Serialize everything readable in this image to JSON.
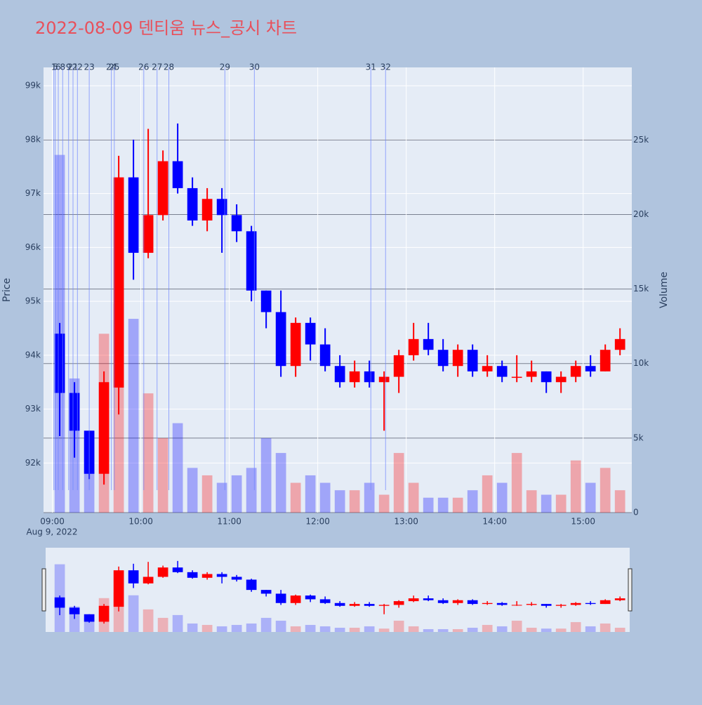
{
  "chart_data": {
    "type": "candlestick",
    "title": "2022-08-09 덴티움 뉴스_공시 차트",
    "y_label": "Price",
    "y2_label": "Volume",
    "x_date_label": "Aug 9, 2022",
    "up_color": "#ff0000",
    "down_color": "#0000ff",
    "grid": true,
    "x": [
      "09:00",
      "09:10",
      "09:20",
      "09:30",
      "09:40",
      "09:50",
      "10:00",
      "10:10",
      "10:20",
      "10:30",
      "10:40",
      "10:50",
      "11:00",
      "11:10",
      "11:20",
      "11:30",
      "11:40",
      "11:50",
      "12:00",
      "12:10",
      "12:20",
      "12:30",
      "12:40",
      "12:50",
      "13:00",
      "13:10",
      "13:20",
      "13:30",
      "13:40",
      "13:50",
      "14:00",
      "14:10",
      "14:20",
      "14:30",
      "14:40",
      "14:50",
      "15:00",
      "15:10",
      "15:20"
    ],
    "open": [
      94400,
      93300,
      92600,
      91800,
      93400,
      97300,
      95900,
      96600,
      97600,
      97100,
      96500,
      96900,
      96600,
      96300,
      95200,
      94800,
      93800,
      94600,
      94200,
      93800,
      93500,
      93700,
      93500,
      93600,
      94000,
      94300,
      94100,
      93800,
      94100,
      93700,
      93800,
      93600,
      93600,
      93700,
      93500,
      93600,
      93800,
      93700,
      94100
    ],
    "high": [
      94600,
      93500,
      92600,
      93700,
      97700,
      98000,
      98200,
      97800,
      98300,
      97300,
      97100,
      97100,
      96800,
      96400,
      95200,
      95200,
      94700,
      94700,
      94500,
      94000,
      93900,
      93900,
      93700,
      94100,
      94600,
      94600,
      94300,
      94200,
      94200,
      94000,
      93900,
      94000,
      93900,
      93700,
      93700,
      93900,
      94000,
      94200,
      94500
    ],
    "low": [
      92500,
      92100,
      91700,
      91600,
      92900,
      95400,
      95800,
      96500,
      97000,
      96400,
      96300,
      95900,
      96100,
      95000,
      94500,
      93600,
      93600,
      93900,
      93700,
      93400,
      93400,
      93400,
      92600,
      93300,
      93900,
      94000,
      93700,
      93600,
      93600,
      93600,
      93500,
      93500,
      93500,
      93300,
      93300,
      93500,
      93600,
      93700,
      94000
    ],
    "close": [
      93300,
      92600,
      91800,
      93500,
      97300,
      95900,
      96600,
      97600,
      97100,
      96500,
      96900,
      96600,
      96300,
      95200,
      94800,
      93800,
      94600,
      94200,
      93800,
      93500,
      93700,
      93500,
      93600,
      94000,
      94300,
      94100,
      93800,
      94100,
      93700,
      93800,
      93600,
      93600,
      93700,
      93500,
      93600,
      93800,
      93700,
      94100,
      94300
    ],
    "volume": [
      24000,
      9000,
      5000,
      12000,
      14000,
      13000,
      8000,
      5000,
      6000,
      3000,
      2500,
      2000,
      2500,
      3000,
      5000,
      4000,
      2000,
      2500,
      2000,
      1500,
      1500,
      2000,
      1200,
      4000,
      2000,
      1000,
      1000,
      1000,
      1500,
      2500,
      2000,
      4000,
      1500,
      1200,
      1200,
      3500,
      2000,
      3000,
      1500
    ],
    "xlim": [
      "08:54",
      "15:33"
    ],
    "xticks": [
      "09:00",
      "10:00",
      "11:00",
      "12:00",
      "13:00",
      "14:00",
      "15:00"
    ],
    "ylim": [
      91080,
      99340
    ],
    "yticks": [
      {
        "value": 92000,
        "label": "92k"
      },
      {
        "value": 93000,
        "label": "93k"
      },
      {
        "value": 94000,
        "label": "94k"
      },
      {
        "value": 95000,
        "label": "95k"
      },
      {
        "value": 96000,
        "label": "96k"
      },
      {
        "value": 97000,
        "label": "97k"
      },
      {
        "value": 98000,
        "label": "98k"
      },
      {
        "value": 99000,
        "label": "99k"
      }
    ],
    "y2lim": [
      0,
      29870
    ],
    "y2ticks": [
      0,
      {
        "value": 5000,
        "label": "5k"
      },
      {
        "value": 10000,
        "label": "10k"
      },
      {
        "value": 15000,
        "label": "15k"
      },
      {
        "value": 20000,
        "label": "20k"
      },
      {
        "value": 25000,
        "label": "25k"
      }
    ],
    "news": [
      {
        "label": "1",
        "time": "09:01"
      },
      {
        "label": "5",
        "time": "09:02"
      },
      {
        "label": "6",
        "time": "09:04"
      },
      {
        "label": "8",
        "time": "09:07"
      },
      {
        "label": "9",
        "time": "09:11"
      },
      {
        "label": "21",
        "time": "09:14"
      },
      {
        "label": "22",
        "time": "09:17"
      },
      {
        "label": "23",
        "time": "09:25"
      },
      {
        "label": "24",
        "time": "09:40"
      },
      {
        "label": "25",
        "time": "09:42"
      },
      {
        "label": "26",
        "time": "10:02"
      },
      {
        "label": "27",
        "time": "10:11"
      },
      {
        "label": "28",
        "time": "10:19"
      },
      {
        "label": "29",
        "time": "10:57"
      },
      {
        "label": "30",
        "time": "11:17"
      },
      {
        "label": "31",
        "time": "12:36"
      },
      {
        "label": "32",
        "time": "12:46"
      }
    ]
  }
}
